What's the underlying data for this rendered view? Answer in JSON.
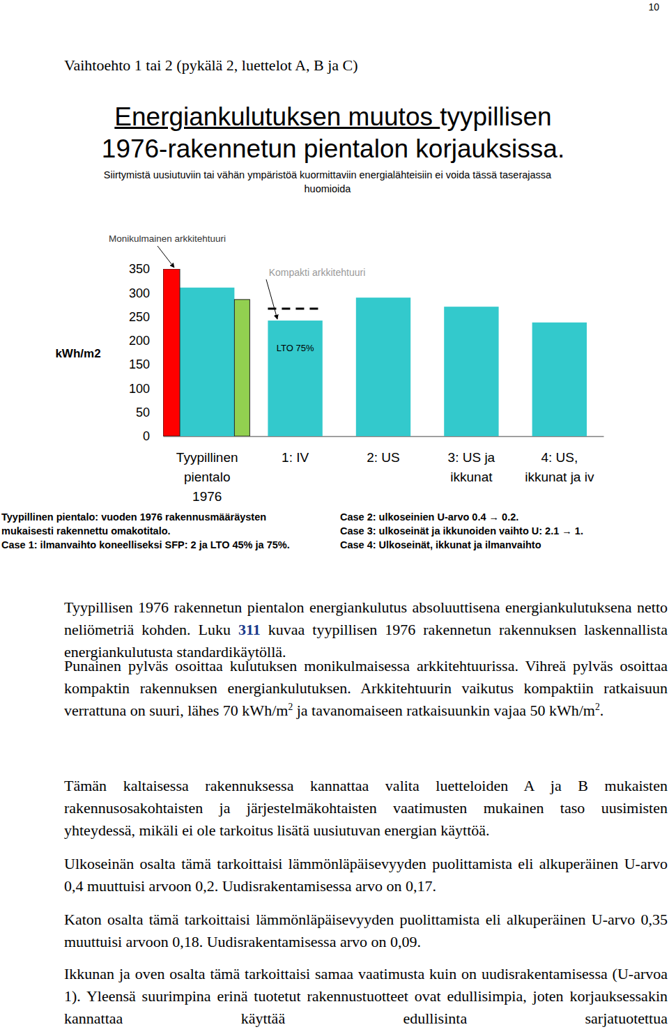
{
  "page_number": "10",
  "heading": "Vaihtoehto 1 tai 2 (pykälä 2, luettelot A, B ja C)",
  "title": [
    [
      {
        "text": "Energiankulutuksen muutos ",
        "underline": true
      },
      {
        "text": "tyypillisen"
      }
    ],
    [
      {
        "text": "1976-rakennetun pientalon korjauksissa."
      }
    ]
  ],
  "subtitle": [
    "Siirtymistä uusiutuviin tai vähän ympäristöä kuormittaviin energialähteisiin ei voida tässä taserajassa",
    "huomioida"
  ],
  "chart_data": {
    "type": "bar",
    "ylabel": "kWh/m2",
    "categories": [
      "Tyypillinen\npientalo\n1976",
      "1: IV",
      "2: US",
      "3: US ja\nikkunat",
      "4: US,\nikkunat ja iv"
    ],
    "series": [
      {
        "color": "#33c9cc",
        "values": [
          311,
          242,
          290,
          271,
          238
        ]
      },
      {
        "color": "#ff0000",
        "values": [
          350,
          null,
          null,
          null,
          null
        ]
      },
      {
        "color": "#92d050",
        "values": [
          286,
          null,
          null,
          null,
          null
        ]
      },
      {
        "type": "line",
        "line_style": "dashed",
        "color": "#000000",
        "values": [
          null,
          267,
          null,
          null,
          null
        ]
      }
    ],
    "ylim": [
      0,
      350
    ],
    "yticks": [
      0,
      50,
      100,
      150,
      200,
      250,
      300,
      350
    ],
    "annotations": [
      "Monikulmainen arkkitehtuuri",
      "Kompakti arkkitehtuuri",
      "LTO 75%"
    ]
  },
  "notes": [
    [
      "Tyypillinen pientalo: vuoden 1976 rakennusmääräysten",
      "Case 2: ulkoseinien U-arvo 0.4 → 0.2."
    ],
    [
      "mukaisesti rakennettu omakotitalo.",
      "Case 3: ulkoseinät ja ikkunoiden vaihto U: 2.1 → 1."
    ],
    [
      "Case 1: ilmanvaihto koneelliseksi SFP: 2 ja LTO 45% ja 75%.",
      "Case 4: Ulkoseinät, ikkunat ja ilmanvaihto"
    ]
  ],
  "paragraphs": [
    [
      {
        "text": "Tyypillisen 1976 rakennetun pientalon energiankulutus absoluuttisena energiankulutuksena netto neliömetriä kohden. Luku "
      },
      {
        "text": "311",
        "bold": true
      },
      {
        "text": " kuvaa tyypillisen 1976 rakennetun rakennuksen laskennallista energiankulutusta standardikäytöllä."
      }
    ],
    [
      {
        "text": "Punainen pylväs osoittaa kulutuksen monikulmaisessa arkkitehtuurissa. Vihreä pylväs osoittaa kompaktin rakennuksen energiankulutuksen. Arkkitehtuurin vaikutus kompaktiin ratkaisuun verrattuna on suuri, lähes 70 kWh/m"
      },
      {
        "text": "2",
        "sup": true
      },
      {
        "text": " ja tavanomaiseen ratkaisuunkin vajaa 50 kWh/m"
      },
      {
        "text": "2",
        "sup": true
      },
      {
        "text": "."
      }
    ],
    [
      {
        "text": "Tämän kaltaisessa rakennuksessa kannattaa valita luetteloiden A ja B mukaisten rakennusosakohtaisten ja järjestelmäkohtaisten vaatimusten mukainen taso uusimisten yhteydessä, mikäli ei ole tarkoitus lisätä uusiutuvan energian käyttöä."
      }
    ],
    [
      {
        "text": "Ulkoseinän osalta tämä tarkoittaisi lämmönläpäisevyyden puolittamista eli alkuperäinen U-arvo 0,4 muuttuisi arvoon 0,2. Uudisrakentamisessa arvo on 0,17."
      }
    ],
    [
      {
        "text": "Katon osalta tämä tarkoittaisi lämmönläpäisevyyden puolittamista eli alkuperäinen U-arvo 0,35 muuttuisi arvoon 0,18. Uudisrakentamisessa arvo on 0,09."
      }
    ],
    [
      {
        "text": "Ikkunan ja oven osalta tämä tarkoittaisi samaa vaatimusta kuin on uudisrakentamisessa (U-arvoa 1). Yleensä suurimpina erinä tuotetut rakennustuotteet ovat edullisimpia, joten korjauksessakin kannattaa käyttää edullisinta sarjatuotettua"
      }
    ]
  ]
}
